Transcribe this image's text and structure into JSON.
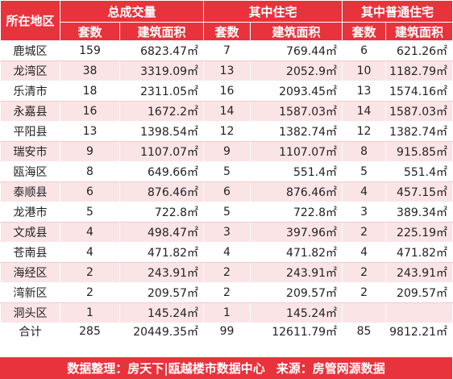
{
  "header": {
    "region": "所在地区",
    "group_total": "总成交量",
    "group_residential": "其中住宅",
    "group_ordinary": "其中普通住宅",
    "sets": "套数",
    "area": "建筑面积"
  },
  "rows": [
    {
      "region": "鹿城区",
      "c1": "159",
      "a1": "6823.47㎡",
      "c2": "7",
      "a2": "769.44㎡",
      "c3": "6",
      "a3": "621.26㎡"
    },
    {
      "region": "龙湾区",
      "c1": "38",
      "a1": "3319.09㎡",
      "c2": "13",
      "a2": "2052.9㎡",
      "c3": "10",
      "a3": "1182.79㎡"
    },
    {
      "region": "乐清市",
      "c1": "18",
      "a1": "2311.05㎡",
      "c2": "16",
      "a2": "2093.45㎡",
      "c3": "13",
      "a3": "1574.16㎡"
    },
    {
      "region": "永嘉县",
      "c1": "16",
      "a1": "1672.2㎡",
      "c2": "14",
      "a2": "1587.03㎡",
      "c3": "14",
      "a3": "1587.03㎡"
    },
    {
      "region": "平阳县",
      "c1": "13",
      "a1": "1398.54㎡",
      "c2": "12",
      "a2": "1382.74㎡",
      "c3": "12",
      "a3": "1382.74㎡"
    },
    {
      "region": "瑞安市",
      "c1": "9",
      "a1": "1107.07㎡",
      "c2": "9",
      "a2": "1107.07㎡",
      "c3": "8",
      "a3": "915.85㎡"
    },
    {
      "region": "瓯海区",
      "c1": "8",
      "a1": "649.66㎡",
      "c2": "5",
      "a2": "551.4㎡",
      "c3": "5",
      "a3": "551.4㎡"
    },
    {
      "region": "泰顺县",
      "c1": "6",
      "a1": "876.46㎡",
      "c2": "6",
      "a2": "876.46㎡",
      "c3": "4",
      "a3": "457.15㎡"
    },
    {
      "region": "龙港市",
      "c1": "5",
      "a1": "722.8㎡",
      "c2": "5",
      "a2": "722.8㎡",
      "c3": "3",
      "a3": "389.34㎡"
    },
    {
      "region": "文成县",
      "c1": "4",
      "a1": "498.47㎡",
      "c2": "3",
      "a2": "397.96㎡",
      "c3": "2",
      "a3": "225.19㎡"
    },
    {
      "region": "苍南县",
      "c1": "4",
      "a1": "471.82㎡",
      "c2": "4",
      "a2": "471.82㎡",
      "c3": "4",
      "a3": "471.82㎡"
    },
    {
      "region": "海经区",
      "c1": "2",
      "a1": "243.91㎡",
      "c2": "2",
      "a2": "243.91㎡",
      "c3": "2",
      "a3": "243.91㎡"
    },
    {
      "region": "湾新区",
      "c1": "2",
      "a1": "209.57㎡",
      "c2": "2",
      "a2": "209.57㎡",
      "c3": "2",
      "a3": "209.57㎡"
    },
    {
      "region": "洞头区",
      "c1": "1",
      "a1": "145.24㎡",
      "c2": "1",
      "a2": "145.24㎡",
      "c3": "",
      "a3": ""
    },
    {
      "region": "合计",
      "c1": "285",
      "a1": "20449.35㎡",
      "c2": "99",
      "a2": "12611.79㎡",
      "c3": "85",
      "a3": "9812.21㎡"
    }
  ],
  "footer": {
    "compiled": "数据整理：房天下|瓯越楼市数据中心",
    "source": "来源：房管网源数据"
  },
  "colors": {
    "header_bg": "#e8333d",
    "stripe": "#fbe4e6"
  }
}
